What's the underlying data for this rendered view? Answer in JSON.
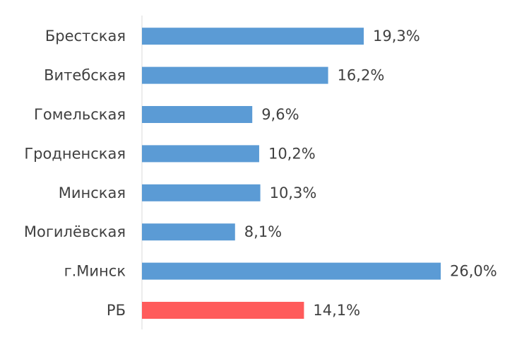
{
  "chart_data": {
    "type": "bar",
    "orientation": "horizontal",
    "categories": [
      "Брестская",
      "Витебская",
      "Гомельская",
      "Гродненская",
      "Минская",
      "Могилёвская",
      "г.Минск",
      "РБ"
    ],
    "values": [
      19.3,
      16.2,
      9.6,
      10.2,
      10.3,
      8.1,
      26.0,
      14.1
    ],
    "value_labels": [
      "19,3%",
      "16,2%",
      "9,6%",
      "10,2%",
      "10,3%",
      "8,1%",
      "26,0%",
      "14,1%"
    ],
    "colors": [
      "#5b9bd5",
      "#5b9bd5",
      "#5b9bd5",
      "#5b9bd5",
      "#5b9bd5",
      "#5b9bd5",
      "#5b9bd5",
      "#ff5b5b"
    ]
  }
}
